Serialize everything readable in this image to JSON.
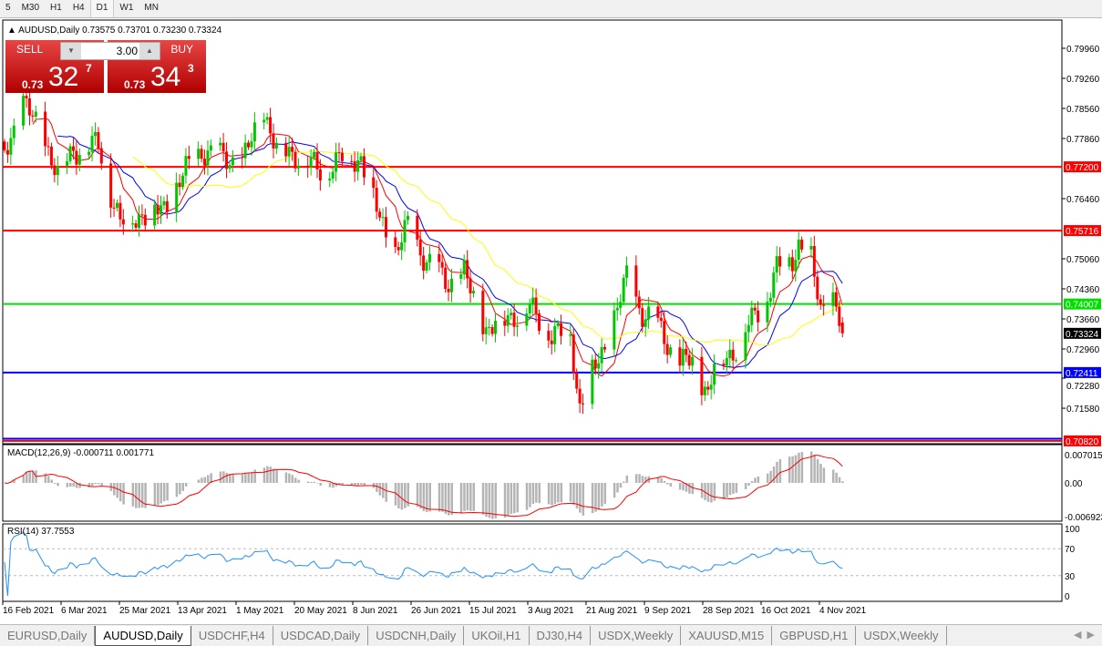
{
  "timeframes": [
    "5",
    "M30",
    "H1",
    "H4",
    "D1",
    "W1",
    "MN"
  ],
  "active_timeframe": "D1",
  "chart_title": "AUDUSD,Daily  0.73575 0.73701 0.73230 0.73324",
  "trade_panel": {
    "sell_label": "SELL",
    "buy_label": "BUY",
    "lot": "3.00",
    "sell_prefix": "0.73",
    "sell_big": "32",
    "sell_sup": "7",
    "buy_prefix": "0.73",
    "buy_big": "34",
    "buy_sup": "3",
    "color": "#d01010"
  },
  "price_axis": [
    "0.79960",
    "0.79260",
    "0.78560",
    "0.77860",
    "0.76460",
    "0.75060",
    "0.74360",
    "0.73660",
    "0.72960",
    "0.72280",
    "0.71580"
  ],
  "hlines": [
    {
      "price": "0.77200",
      "color": "#ff0000"
    },
    {
      "price": "0.75716",
      "color": "#ff0000"
    },
    {
      "price": "0.74007",
      "color": "#00e000"
    },
    {
      "price": "0.72411",
      "color": "#0000ff"
    },
    {
      "price": "0.70820",
      "color": "#ff0000"
    }
  ],
  "current_price": "0.73324",
  "macd": {
    "label": "MACD(12,26,9) -0.000711 0.001771",
    "axis": [
      "0.007015",
      "0.00",
      "-0.006923"
    ]
  },
  "rsi": {
    "label": "RSI(14) 37.7553",
    "axis": [
      "100",
      "70",
      "30",
      "0"
    ]
  },
  "date_axis": [
    "16 Feb 2021",
    "6 Mar 2021",
    "25 Mar 2021",
    "13 Apr 2021",
    "1 May 2021",
    "20 May 2021",
    "8 Jun 2021",
    "26 Jun 2021",
    "15 Jul 2021",
    "3 Aug 2021",
    "21 Aug 2021",
    "9 Sep 2021",
    "28 Sep 2021",
    "16 Oct 2021",
    "4 Nov 2021"
  ],
  "chart_data": {
    "type": "candlestick",
    "symbol": "AUDUSD",
    "timeframe": "Daily",
    "ylim": [
      0.7082,
      0.8036
    ],
    "close_anchors": [
      [
        "2021-02-16",
        0.775
      ],
      [
        "2021-02-22",
        0.787
      ],
      [
        "2021-03-01",
        0.778
      ],
      [
        "2021-03-05",
        0.77
      ],
      [
        "2021-03-10",
        0.776
      ],
      [
        "2021-03-18",
        0.777
      ],
      [
        "2021-03-22",
        0.766
      ],
      [
        "2021-03-25",
        0.759
      ],
      [
        "2021-04-01",
        0.761
      ],
      [
        "2021-04-08",
        0.762
      ],
      [
        "2021-04-13",
        0.769
      ],
      [
        "2021-04-20",
        0.776
      ],
      [
        "2021-04-27",
        0.774
      ],
      [
        "2021-05-03",
        0.773
      ],
      [
        "2021-05-10",
        0.785
      ],
      [
        "2021-05-14",
        0.776
      ],
      [
        "2021-05-20",
        0.775
      ],
      [
        "2021-05-28",
        0.771
      ],
      [
        "2021-06-04",
        0.774
      ],
      [
        "2021-06-10",
        0.774
      ],
      [
        "2021-06-16",
        0.76
      ],
      [
        "2021-06-21",
        0.752
      ],
      [
        "2021-06-25",
        0.758
      ],
      [
        "2021-07-01",
        0.75
      ],
      [
        "2021-07-08",
        0.745
      ],
      [
        "2021-07-13",
        0.747
      ],
      [
        "2021-07-20",
        0.734
      ],
      [
        "2021-07-27",
        0.737
      ],
      [
        "2021-08-03",
        0.739
      ],
      [
        "2021-08-10",
        0.733
      ],
      [
        "2021-08-16",
        0.733
      ],
      [
        "2021-08-19",
        0.716
      ],
      [
        "2021-08-23",
        0.724
      ],
      [
        "2021-08-27",
        0.73
      ],
      [
        "2021-09-03",
        0.746
      ],
      [
        "2021-09-08",
        0.738
      ],
      [
        "2021-09-13",
        0.735
      ],
      [
        "2021-09-20",
        0.726
      ],
      [
        "2021-09-24",
        0.727
      ],
      [
        "2021-09-29",
        0.719
      ],
      [
        "2021-10-01",
        0.726
      ],
      [
        "2021-10-07",
        0.729
      ],
      [
        "2021-10-12",
        0.735
      ],
      [
        "2021-10-18",
        0.742
      ],
      [
        "2021-10-21",
        0.748
      ],
      [
        "2021-10-26",
        0.751
      ],
      [
        "2021-10-28",
        0.754
      ],
      [
        "2021-11-01",
        0.75
      ],
      [
        "2021-11-04",
        0.739
      ],
      [
        "2021-11-08",
        0.741
      ],
      [
        "2021-11-11",
        0.73324
      ]
    ],
    "ma_colors": {
      "fast": "#ff0000",
      "mid": "#0000ff",
      "slow": "#ffff00"
    }
  },
  "symbol_tabs": [
    "EURUSD,Daily",
    "AUDUSD,Daily",
    "USDCHF,H4",
    "USDCAD,Daily",
    "USDCNH,Daily",
    "UKOil,H1",
    "DJ30,H4",
    "USDX,Weekly",
    "XAUUSD,M15",
    "GBPUSD,H1",
    "USDX,Weekly"
  ],
  "active_tab": "AUDUSD,Daily"
}
